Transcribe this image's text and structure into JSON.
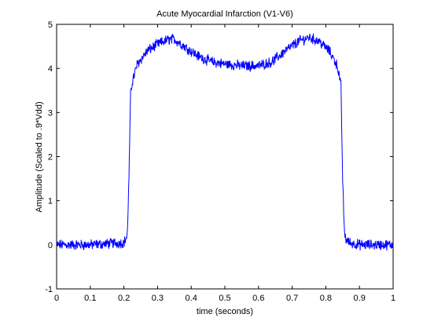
{
  "chart_data": {
    "type": "line",
    "title": "Acute Myocardial Infarction (V1-V6)",
    "xlabel": "time (seconds)",
    "ylabel": "Amplitude (Scaled to .9*Vdd)",
    "xlim": [
      0,
      1
    ],
    "ylim": [
      -1,
      5
    ],
    "xticks": [
      "0",
      "0.1",
      "0.2",
      "0.3",
      "0.4",
      "0.5",
      "0.6",
      "0.7",
      "0.8",
      "0.9",
      "1"
    ],
    "yticks": [
      "-1",
      "0",
      "1",
      "2",
      "3",
      "4",
      "5"
    ],
    "grid": false,
    "legend": "none",
    "line_color": "#0000ff",
    "series": [
      {
        "x": [
          0,
          0.1,
          0.2,
          0.21,
          0.215,
          0.22,
          0.225,
          0.24,
          0.27,
          0.3,
          0.33,
          0.35,
          0.38,
          0.42,
          0.46,
          0.5,
          0.55,
          0.6,
          0.64,
          0.68,
          0.72,
          0.75,
          0.78,
          0.81,
          0.835,
          0.845,
          0.85,
          0.855,
          0.86,
          0.87,
          0.9,
          1.0
        ],
        "y": [
          0.0,
          0.0,
          0.05,
          0.2,
          1.5,
          3.45,
          3.7,
          4.1,
          4.4,
          4.55,
          4.65,
          4.66,
          4.5,
          4.28,
          4.15,
          4.1,
          4.06,
          4.06,
          4.15,
          4.4,
          4.62,
          4.7,
          4.62,
          4.4,
          4.05,
          3.6,
          1.5,
          0.3,
          0.12,
          0.05,
          0.0,
          0.0
        ]
      }
    ]
  }
}
